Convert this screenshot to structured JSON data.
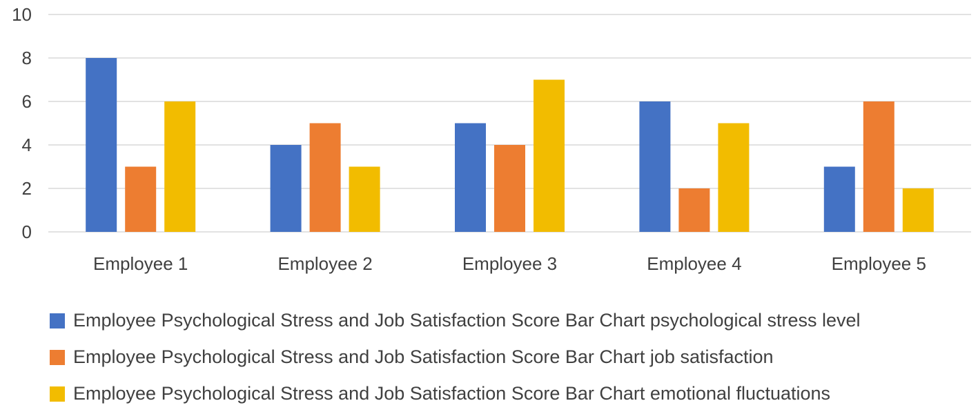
{
  "chart_data": {
    "type": "bar",
    "categories": [
      "Employee 1",
      "Employee 2",
      "Employee 3",
      "Employee 4",
      "Employee 5"
    ],
    "series": [
      {
        "name": "Employee Psychological Stress and Job Satisfaction Score Bar Chart psychological stress level",
        "color": "#4472C4",
        "values": [
          8,
          4,
          5,
          6,
          3
        ]
      },
      {
        "name": "Employee Psychological Stress and Job Satisfaction Score Bar Chart job satisfaction",
        "color": "#ED7D31",
        "values": [
          3,
          5,
          4,
          2,
          6
        ]
      },
      {
        "name": "Employee Psychological Stress and Job Satisfaction Score Bar Chart emotional fluctuations",
        "color": "#F2BC00",
        "values": [
          6,
          3,
          7,
          5,
          2
        ]
      }
    ],
    "yticks": [
      0,
      2,
      4,
      6,
      8,
      10
    ],
    "ylim": [
      0,
      10
    ],
    "grid": true,
    "gridline_color": "#D9D9D9",
    "legend_position": "bottom",
    "title": "",
    "xlabel": "",
    "ylabel": ""
  }
}
